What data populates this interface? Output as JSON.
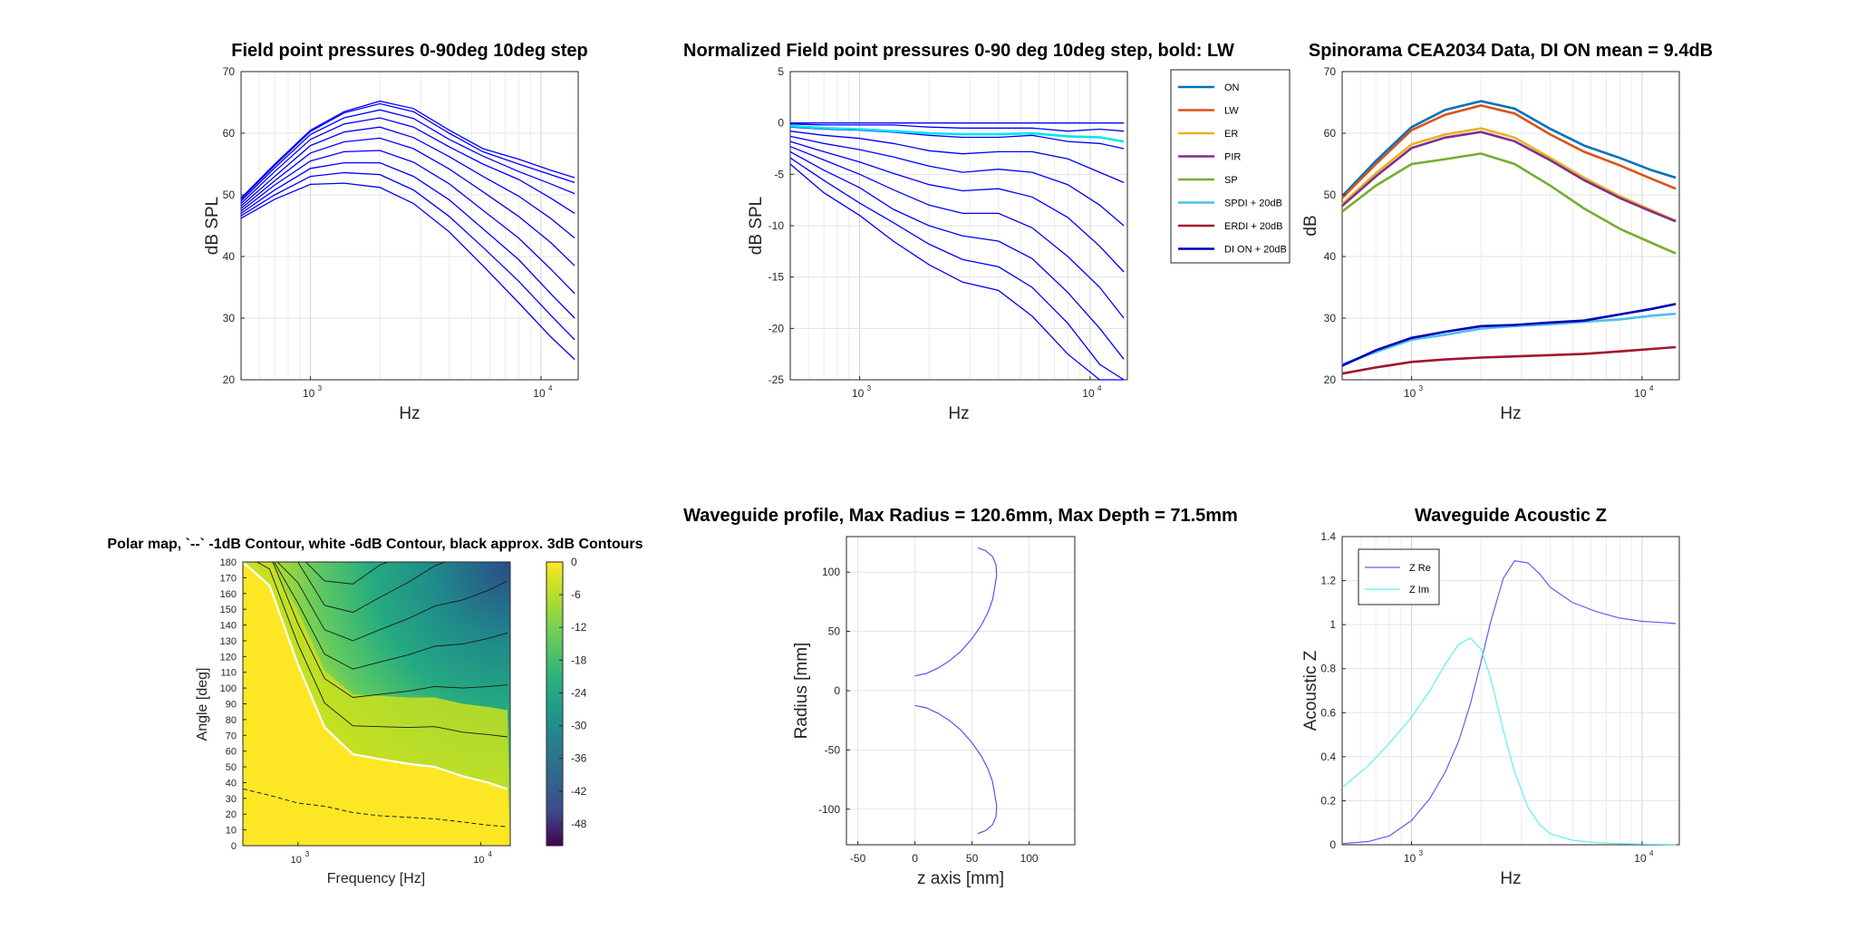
{
  "figure": {
    "colors": {
      "blue": "#0000FF",
      "cyan": "#00E5EE",
      "ON": "#0072BD",
      "LW": "#D95319",
      "ER": "#EDB120",
      "PIR": "#7E2F8E",
      "SP": "#77AC30",
      "SPDI": "#4DBEEE",
      "ERDI": "#A2142F",
      "DION": "#0000B4",
      "zre": "#6060F0",
      "zim": "#60F0F0"
    }
  },
  "chart_data": [
    {
      "id": "field",
      "type": "line",
      "title": "Field point pressures 0-90deg 10deg step",
      "xlabel": "Hz",
      "ylabel": "dB SPL",
      "xscale": "log",
      "xlim": [
        500,
        14500
      ],
      "ylim": [
        20,
        70
      ],
      "xticks": [
        1000,
        10000
      ],
      "xticklabels": [
        "10",
        "10"
      ],
      "xtick_exponents": [
        "3",
        "4"
      ],
      "yticks": [
        20,
        30,
        40,
        50,
        60,
        70
      ],
      "grid": true,
      "x": [
        500,
        700,
        1000,
        1400,
        2000,
        2800,
        4000,
        5600,
        8000,
        11000,
        14000
      ],
      "series": [
        {
          "values": [
            49.5,
            55.0,
            60.5,
            63.5,
            65.2,
            64.0,
            60.5,
            57.5,
            55.8,
            54.0,
            52.8
          ]
        },
        {
          "values": [
            49.3,
            54.8,
            60.3,
            63.3,
            64.8,
            63.5,
            60.0,
            57.0,
            55.0,
            53.3,
            52.0
          ]
        },
        {
          "values": [
            49.0,
            54.4,
            59.8,
            62.5,
            63.8,
            62.4,
            59.0,
            56.3,
            53.8,
            51.8,
            50.2
          ]
        },
        {
          "values": [
            48.6,
            53.8,
            59.0,
            61.5,
            62.5,
            61.0,
            57.8,
            55.0,
            52.5,
            49.5,
            47.0
          ]
        },
        {
          "values": [
            48.2,
            53.0,
            58.0,
            60.2,
            61.0,
            59.3,
            56.2,
            53.0,
            49.8,
            46.2,
            43.0
          ]
        },
        {
          "values": [
            47.8,
            52.3,
            56.8,
            58.6,
            59.2,
            57.5,
            54.2,
            50.5,
            46.5,
            42.3,
            38.5
          ]
        },
        {
          "values": [
            47.4,
            51.6,
            55.5,
            57.0,
            57.2,
            55.3,
            51.8,
            47.5,
            43.0,
            38.0,
            34.0
          ]
        },
        {
          "values": [
            47.0,
            50.8,
            54.3,
            55.2,
            55.2,
            53.0,
            49.2,
            44.5,
            39.5,
            34.0,
            30.0
          ]
        },
        {
          "values": [
            46.6,
            50.0,
            53.0,
            53.6,
            53.3,
            50.8,
            46.5,
            41.5,
            36.0,
            30.5,
            26.5
          ]
        },
        {
          "values": [
            46.2,
            49.3,
            51.7,
            51.9,
            51.2,
            48.6,
            44.0,
            38.5,
            32.5,
            27.0,
            23.3
          ]
        }
      ]
    },
    {
      "id": "norm",
      "type": "line",
      "title": "Normalized Field point pressures 0-90 deg 10deg step, bold: LW",
      "xlabel": "Hz",
      "ylabel": "dB SPL",
      "xscale": "log",
      "xlim": [
        500,
        14500
      ],
      "ylim": [
        -25,
        5
      ],
      "xticks": [
        1000,
        10000
      ],
      "xticklabels": [
        "10",
        "10"
      ],
      "xtick_exponents": [
        "3",
        "4"
      ],
      "yticks": [
        -25,
        -20,
        -15,
        -10,
        -5,
        0,
        5
      ],
      "grid": true,
      "x": [
        500,
        700,
        1000,
        1400,
        2000,
        2800,
        4000,
        5600,
        8000,
        11000,
        14000
      ],
      "series": [
        {
          "values": [
            0,
            0,
            0,
            0,
            0,
            0,
            0,
            0,
            0,
            0,
            0
          ]
        },
        {
          "values": [
            -0.1,
            -0.2,
            -0.2,
            -0.2,
            -0.4,
            -0.5,
            -0.5,
            -0.5,
            -0.8,
            -0.6,
            -0.8
          ]
        },
        {
          "values": [
            -0.4,
            -0.6,
            -0.7,
            -0.9,
            -1.2,
            -1.4,
            -1.4,
            -1.2,
            -1.8,
            -2.0,
            -2.5
          ]
        },
        {
          "values": [
            -0.8,
            -1.2,
            -1.5,
            -2.0,
            -2.7,
            -3.0,
            -2.8,
            -2.8,
            -3.5,
            -4.8,
            -5.8
          ]
        },
        {
          "values": [
            -1.3,
            -2.0,
            -2.6,
            -3.3,
            -4.2,
            -4.8,
            -4.5,
            -4.8,
            -6.0,
            -8.0,
            -10.0
          ]
        },
        {
          "values": [
            -1.8,
            -2.8,
            -3.8,
            -4.9,
            -6.0,
            -6.6,
            -6.4,
            -7.2,
            -9.2,
            -12.0,
            -14.5
          ]
        },
        {
          "values": [
            -2.3,
            -3.6,
            -5.0,
            -6.5,
            -8.0,
            -8.8,
            -8.8,
            -10.2,
            -13.0,
            -16.0,
            -19.0
          ]
        },
        {
          "values": [
            -2.8,
            -4.6,
            -6.3,
            -8.4,
            -10.0,
            -11.0,
            -11.5,
            -13.2,
            -16.5,
            -20.0,
            -23.0
          ]
        },
        {
          "values": [
            -3.4,
            -5.6,
            -7.8,
            -9.7,
            -11.8,
            -13.3,
            -14.0,
            -16.0,
            -19.5,
            -23.5,
            -26.5
          ]
        },
        {
          "values": [
            -4.0,
            -6.8,
            -9.0,
            -11.5,
            -13.8,
            -15.5,
            -16.3,
            -18.8,
            -22.5,
            -27.0,
            -30.0
          ]
        },
        {
          "name": "LW",
          "bold": true,
          "values": [
            -0.3,
            -0.5,
            -0.6,
            -0.8,
            -1.0,
            -1.1,
            -1.1,
            -1.0,
            -1.3,
            -1.4,
            -1.8
          ]
        }
      ]
    },
    {
      "id": "spin",
      "type": "line",
      "title": "Spinorama CEA2034 Data, DI ON mean = 9.4dB",
      "xlabel": "Hz",
      "ylabel": "dB",
      "xscale": "log",
      "xlim": [
        500,
        14500
      ],
      "ylim": [
        20,
        70
      ],
      "xticks": [
        1000,
        10000
      ],
      "xticklabels": [
        "10",
        "10"
      ],
      "xtick_exponents": [
        "3",
        "4"
      ],
      "yticks": [
        20,
        30,
        40,
        50,
        60,
        70
      ],
      "grid": true,
      "legend": "outside-left",
      "x": [
        500,
        700,
        1000,
        1400,
        2000,
        2800,
        4000,
        5600,
        8000,
        11000,
        14000
      ],
      "series": [
        {
          "name": "ON",
          "key": "ON",
          "values": [
            49.8,
            55.5,
            61.0,
            63.8,
            65.2,
            64.0,
            60.7,
            58.0,
            56.0,
            54.0,
            52.8
          ]
        },
        {
          "name": "LW",
          "key": "LW",
          "values": [
            49.5,
            55.0,
            60.5,
            63.0,
            64.5,
            63.2,
            59.8,
            57.0,
            54.8,
            52.6,
            51.0
          ]
        },
        {
          "name": "ER",
          "key": "ER",
          "values": [
            48.5,
            53.5,
            58.2,
            59.8,
            60.8,
            59.3,
            56.0,
            52.8,
            49.8,
            47.5,
            45.8
          ]
        },
        {
          "name": "PIR",
          "key": "PIR",
          "values": [
            48.2,
            53.0,
            57.6,
            59.3,
            60.2,
            58.7,
            55.6,
            52.4,
            49.5,
            47.3,
            45.7
          ]
        },
        {
          "name": "SP",
          "key": "SP",
          "values": [
            47.3,
            51.5,
            55.0,
            55.8,
            56.7,
            55.0,
            51.5,
            47.8,
            44.5,
            42.2,
            40.5
          ]
        },
        {
          "name": "SPDI + 20dB",
          "key": "SPDI",
          "values": [
            22.5,
            24.5,
            26.5,
            27.3,
            28.3,
            28.7,
            29.0,
            29.4,
            29.8,
            30.4,
            30.7
          ]
        },
        {
          "name": "ERDI + 20dB",
          "key": "ERDI",
          "values": [
            21.0,
            22.0,
            22.9,
            23.3,
            23.6,
            23.8,
            24.0,
            24.2,
            24.6,
            25.0,
            25.3
          ]
        },
        {
          "name": "DI ON + 20dB",
          "key": "DION",
          "values": [
            22.3,
            24.8,
            26.8,
            27.8,
            28.7,
            28.9,
            29.3,
            29.6,
            30.6,
            31.5,
            32.3
          ]
        }
      ]
    },
    {
      "id": "polar",
      "type": "heatmap",
      "title": "Polar map, `--` -1dB Contour, white -6dB Contour, black approx. 3dB Contours",
      "xlabel": "Frequency [Hz]",
      "ylabel": "Angle [deg]",
      "xscale": "log",
      "xlim": [
        500,
        14500
      ],
      "ylim": [
        0,
        180
      ],
      "xticks": [
        1000,
        10000
      ],
      "xticklabels": [
        "10",
        "10"
      ],
      "xtick_exponents": [
        "3",
        "4"
      ],
      "yticks": [
        0,
        10,
        20,
        30,
        40,
        50,
        60,
        70,
        80,
        90,
        100,
        110,
        120,
        130,
        140,
        150,
        160,
        170,
        180
      ],
      "colorbar": {
        "range": [
          -52,
          0
        ],
        "ticks": [
          0,
          -6,
          -12,
          -18,
          -24,
          -30,
          -36,
          -42,
          -48
        ],
        "colormap": "viridis"
      },
      "contour_minus1_db_angle": [
        36,
        32,
        27,
        25,
        21,
        19,
        18,
        17,
        15,
        13,
        12
      ],
      "contour_minus6_db_angle": [
        180,
        165,
        115,
        75,
        58,
        55,
        52,
        50,
        44,
        40,
        36
      ],
      "x": [
        500,
        700,
        1000,
        1400,
        2000,
        2800,
        4000,
        5600,
        8000,
        11000,
        14000
      ]
    },
    {
      "id": "profile",
      "type": "line",
      "title": "Waveguide profile, Max Radius = 120.6mm, Max Depth = 71.5mm",
      "xlabel": "z axis [mm]",
      "ylabel": "Radius [mm]",
      "xlim": [
        -60,
        140
      ],
      "ylim": [
        -130,
        130
      ],
      "xticks": [
        -50,
        0,
        50,
        100
      ],
      "yticks": [
        -100,
        -50,
        0,
        50,
        100
      ],
      "grid": true,
      "z": [
        0,
        10,
        20,
        30,
        40,
        50,
        58,
        64,
        68,
        70,
        71.5,
        71,
        68,
        62,
        55
      ],
      "r": [
        12.5,
        14.5,
        19,
        25,
        33,
        44,
        55,
        66,
        77,
        88,
        97,
        106,
        113,
        118,
        120.6
      ]
    },
    {
      "id": "impedance",
      "type": "line",
      "title": "Waveguide Acoustic Z",
      "xlabel": "Hz",
      "ylabel": "Acoustic Z",
      "xscale": "log",
      "xlim": [
        500,
        14500
      ],
      "ylim": [
        0,
        1.4
      ],
      "xticks": [
        1000,
        10000
      ],
      "xticklabels": [
        "10",
        "10"
      ],
      "xtick_exponents": [
        "3",
        "4"
      ],
      "yticks": [
        0,
        0.2,
        0.4,
        0.6,
        0.8,
        1,
        1.2,
        1.4
      ],
      "grid": true,
      "legend": "top-left",
      "x": [
        500,
        650,
        800,
        1000,
        1200,
        1400,
        1600,
        1800,
        2000,
        2200,
        2500,
        2800,
        3200,
        3600,
        4000,
        5000,
        6300,
        8000,
        10000,
        12000,
        14000
      ],
      "series": [
        {
          "name": "Z Re",
          "key": "zre",
          "values": [
            0.005,
            0.015,
            0.04,
            0.11,
            0.21,
            0.33,
            0.47,
            0.64,
            0.83,
            1.01,
            1.21,
            1.29,
            1.28,
            1.23,
            1.17,
            1.1,
            1.06,
            1.03,
            1.015,
            1.01,
            1.005
          ]
        },
        {
          "name": "Z Im",
          "key": "zim",
          "values": [
            0.26,
            0.36,
            0.46,
            0.58,
            0.7,
            0.82,
            0.91,
            0.94,
            0.89,
            0.76,
            0.52,
            0.33,
            0.17,
            0.09,
            0.05,
            0.02,
            0.01,
            0.005,
            0.003,
            0.002,
            0.001
          ]
        }
      ]
    }
  ]
}
